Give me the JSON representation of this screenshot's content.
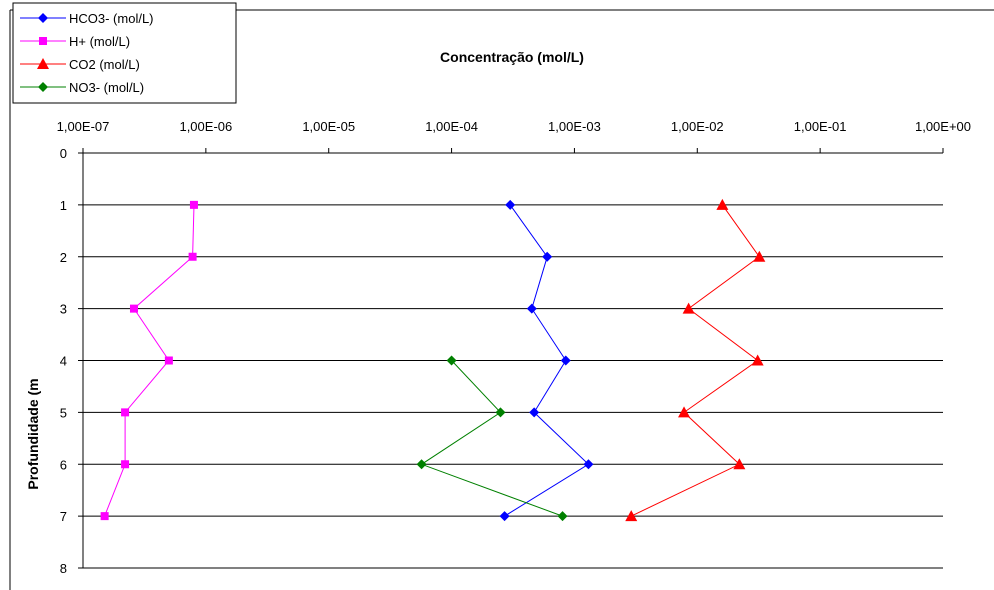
{
  "chart_data": {
    "type": "line",
    "title": "Concentração (mol/L)",
    "xlabel": "",
    "ylabel": "Profundidade (m",
    "x_scale": "log",
    "xlim": [
      1e-07,
      1
    ],
    "x_tick_values": [
      1e-07,
      1e-06,
      1e-05,
      0.0001,
      0.001,
      0.01,
      0.1,
      1
    ],
    "x_tick_labels": [
      "1,00E-07",
      "1,00E-06",
      "1,00E-05",
      "1,00E-04",
      "1,00E-03",
      "1,00E-02",
      "1,00E-01",
      "1,00E+00"
    ],
    "x_axis_position": "top",
    "ylim": [
      0,
      8
    ],
    "y_inverted": true,
    "y_tick_labels": [
      "0",
      "1",
      "2",
      "3",
      "4",
      "5",
      "6",
      "7",
      "8"
    ],
    "grid": "horizontal",
    "legend_position": "top-left",
    "series": [
      {
        "name": "HCO3- (mol/L)",
        "color": "#0000FF",
        "marker": "diamond",
        "points": [
          {
            "x": 0.0003,
            "y": 1
          },
          {
            "x": 0.0006,
            "y": 2
          },
          {
            "x": 0.00045,
            "y": 3
          },
          {
            "x": 0.00085,
            "y": 4
          },
          {
            "x": 0.00047,
            "y": 5
          },
          {
            "x": 0.0013,
            "y": 6
          },
          {
            "x": 0.00027,
            "y": 7
          }
        ]
      },
      {
        "name": "H+ (mol/L)",
        "color": "#FF00FF",
        "marker": "square",
        "points": [
          {
            "x": 8e-07,
            "y": 1
          },
          {
            "x": 7.8e-07,
            "y": 2
          },
          {
            "x": 2.6e-07,
            "y": 3
          },
          {
            "x": 5e-07,
            "y": 4
          },
          {
            "x": 2.2e-07,
            "y": 5
          },
          {
            "x": 2.2e-07,
            "y": 6
          },
          {
            "x": 1.5e-07,
            "y": 7
          }
        ]
      },
      {
        "name": "CO2 (mol/L)",
        "color": "#FF0000",
        "marker": "triangle",
        "points": [
          {
            "x": 0.016,
            "y": 1
          },
          {
            "x": 0.032,
            "y": 2
          },
          {
            "x": 0.0085,
            "y": 3
          },
          {
            "x": 0.031,
            "y": 4
          },
          {
            "x": 0.0078,
            "y": 5
          },
          {
            "x": 0.022,
            "y": 6
          },
          {
            "x": 0.0029,
            "y": 7
          }
        ]
      },
      {
        "name": "NO3- (mol/L)",
        "color": "#008000",
        "marker": "diamond",
        "points": [
          {
            "x": 0.0001,
            "y": 4
          },
          {
            "x": 0.00025,
            "y": 5
          },
          {
            "x": 5.7e-05,
            "y": 6
          },
          {
            "x": 0.0008,
            "y": 7
          }
        ]
      }
    ]
  }
}
